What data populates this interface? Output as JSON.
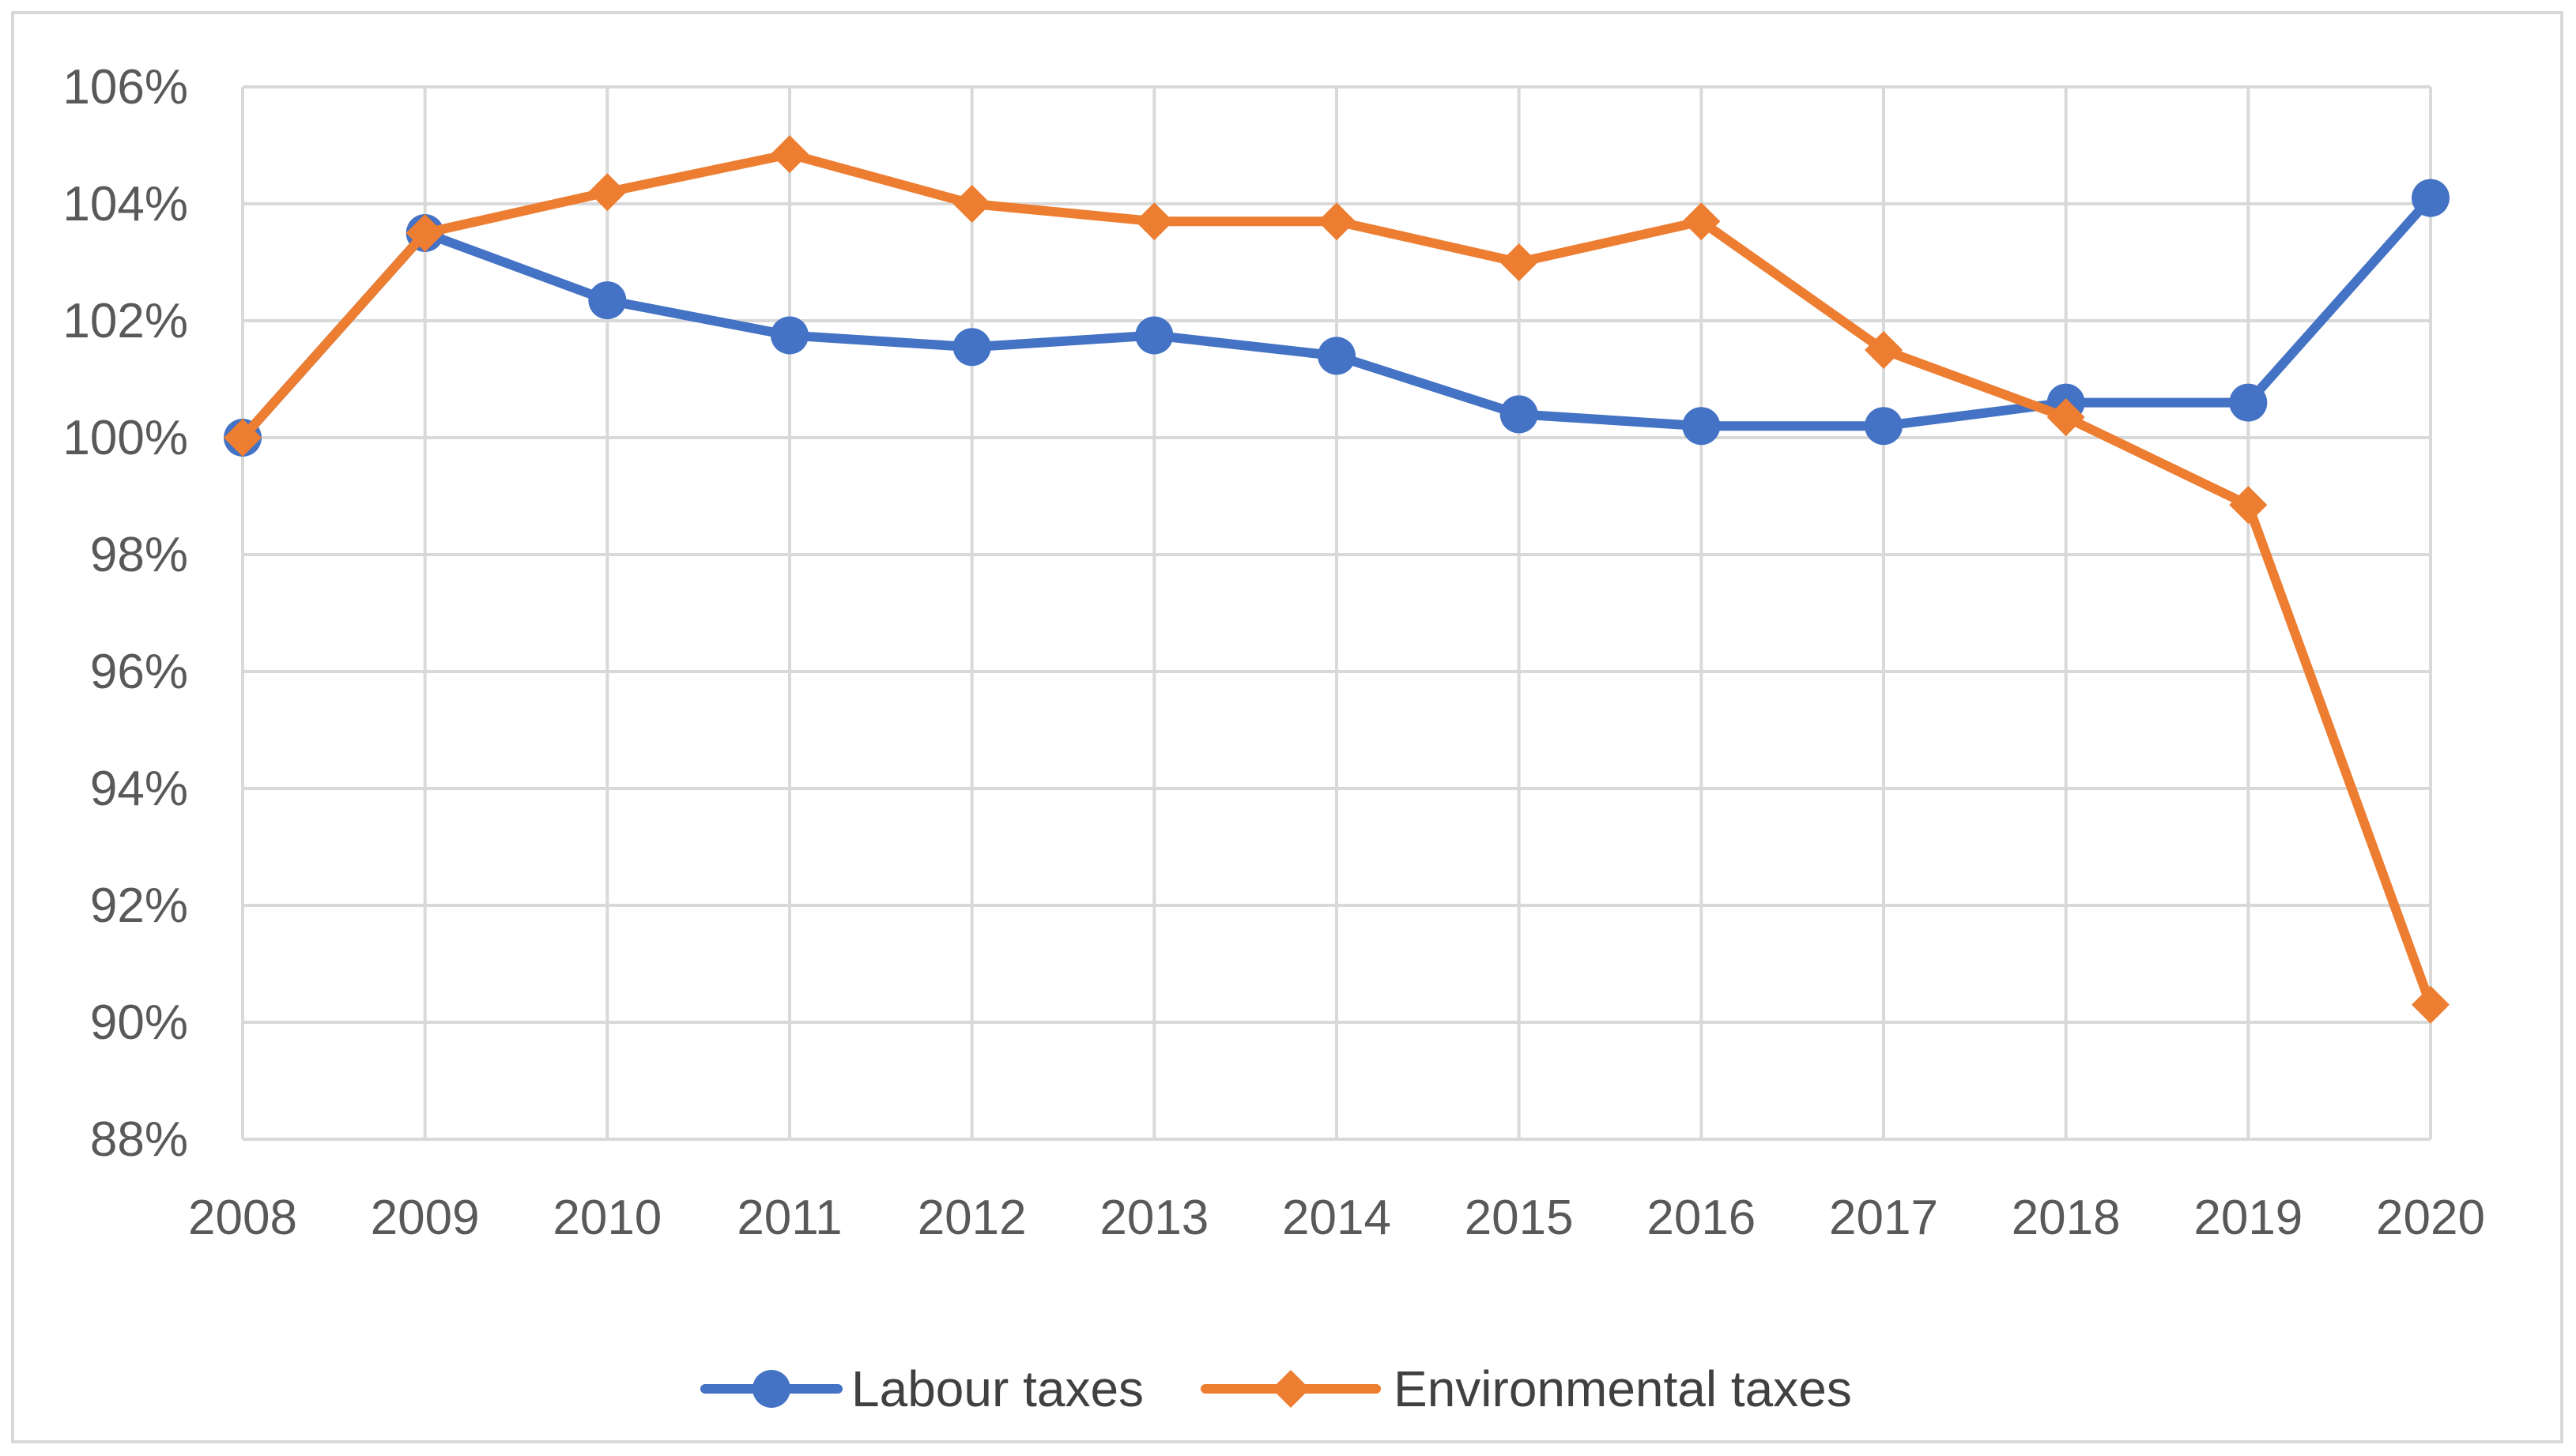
{
  "chart_data": {
    "type": "line",
    "title": "",
    "xlabel": "",
    "ylabel": "",
    "categories": [
      "2008",
      "2009",
      "2010",
      "2011",
      "2012",
      "2013",
      "2014",
      "2015",
      "2016",
      "2017",
      "2018",
      "2019",
      "2020"
    ],
    "ylim": [
      88,
      106
    ],
    "y_ticks": [
      88,
      90,
      92,
      94,
      96,
      98,
      100,
      102,
      104,
      106
    ],
    "y_tick_labels": [
      "88%",
      "90%",
      "92%",
      "94%",
      "96%",
      "98%",
      "100%",
      "102%",
      "104%",
      "106%"
    ],
    "grid": true,
    "legend_position": "bottom",
    "series": [
      {
        "name": "Labour taxes",
        "color": "#4472c4",
        "marker": "circle",
        "values": [
          100.0,
          103.5,
          102.35,
          101.75,
          101.55,
          101.75,
          101.4,
          100.4,
          100.2,
          100.2,
          100.6,
          100.6,
          104.1
        ]
      },
      {
        "name": "Environmental taxes",
        "color": "#ed7d31",
        "marker": "diamond",
        "values": [
          100.0,
          103.5,
          104.2,
          104.85,
          104.0,
          103.7,
          103.7,
          103.0,
          103.7,
          101.5,
          100.35,
          98.85,
          90.3
        ]
      }
    ]
  },
  "colors": {
    "grid": "#d9d9d9",
    "axis_text": "#595959",
    "frame": "#d9d9d9"
  }
}
